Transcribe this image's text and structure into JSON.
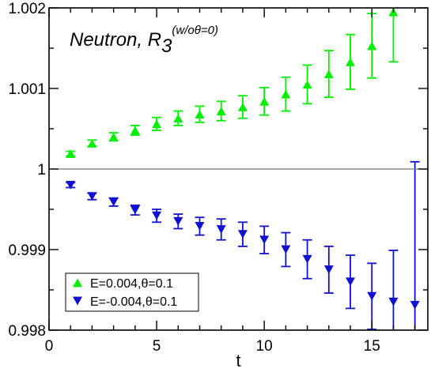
{
  "chart_data": {
    "type": "scatter",
    "title_main": "Neutron, R",
    "title_sub": "3",
    "title_sup": "(w/oθ=0)",
    "xlabel": "t",
    "ylabel": "",
    "xlim": [
      0,
      17.6
    ],
    "ylim": [
      0.998,
      1.002
    ],
    "xticks": [
      0,
      5,
      10,
      15
    ],
    "xtick_labels": [
      "0",
      "5",
      "10",
      "15"
    ],
    "yticks": [
      0.998,
      0.999,
      1.0,
      1.001,
      1.002
    ],
    "ytick_labels": [
      "0.998",
      "0.999",
      "1",
      "1.001",
      "1.002"
    ],
    "reference_line": 1.0,
    "grid": false,
    "legend_position": "bottom-left",
    "series": [
      {
        "name": "E=0.004,θ=0.1",
        "color": "#00ee00",
        "marker": "triangle-up",
        "points": [
          {
            "x": 1,
            "y": 1.00019,
            "err": 3e-05
          },
          {
            "x": 2,
            "y": 1.00032,
            "err": 4e-05
          },
          {
            "x": 3,
            "y": 1.0004,
            "err": 5e-05
          },
          {
            "x": 4,
            "y": 1.00048,
            "err": 6e-05
          },
          {
            "x": 5,
            "y": 1.00056,
            "err": 8e-05
          },
          {
            "x": 6,
            "y": 1.00063,
            "err": 9e-05
          },
          {
            "x": 7,
            "y": 1.00068,
            "err": 0.0001
          },
          {
            "x": 8,
            "y": 1.00072,
            "err": 0.00012
          },
          {
            "x": 9,
            "y": 1.00077,
            "err": 0.00014
          },
          {
            "x": 10,
            "y": 1.00084,
            "err": 0.00017
          },
          {
            "x": 11,
            "y": 1.00093,
            "err": 0.00021
          },
          {
            "x": 12,
            "y": 1.00105,
            "err": 0.00024
          },
          {
            "x": 13,
            "y": 1.00118,
            "err": 0.00029
          },
          {
            "x": 14,
            "y": 1.00133,
            "err": 0.00034
          },
          {
            "x": 15,
            "y": 1.00153,
            "err": 0.0004
          },
          {
            "x": 16,
            "y": 1.00195,
            "err": 0.00062
          }
        ]
      },
      {
        "name": "E=-0.004,θ=0.1",
        "color": "#1010d0",
        "marker": "triangle-down",
        "points": [
          {
            "x": 1,
            "y": 0.9998,
            "err": 3e-05
          },
          {
            "x": 2,
            "y": 0.99966,
            "err": 4e-05
          },
          {
            "x": 3,
            "y": 0.99959,
            "err": 5e-05
          },
          {
            "x": 4,
            "y": 0.99949,
            "err": 6e-05
          },
          {
            "x": 5,
            "y": 0.99942,
            "err": 8e-05
          },
          {
            "x": 6,
            "y": 0.99935,
            "err": 9e-05
          },
          {
            "x": 7,
            "y": 0.99929,
            "err": 0.00011
          },
          {
            "x": 8,
            "y": 0.99925,
            "err": 0.00013
          },
          {
            "x": 9,
            "y": 0.99919,
            "err": 0.00015
          },
          {
            "x": 10,
            "y": 0.99912,
            "err": 0.00017
          },
          {
            "x": 11,
            "y": 0.999,
            "err": 0.00021
          },
          {
            "x": 12,
            "y": 0.99888,
            "err": 0.00024
          },
          {
            "x": 13,
            "y": 0.99875,
            "err": 0.00029
          },
          {
            "x": 14,
            "y": 0.9986,
            "err": 0.00033
          },
          {
            "x": 15,
            "y": 0.99842,
            "err": 0.00041
          },
          {
            "x": 16,
            "y": 0.99835,
            "err": 0.00064
          },
          {
            "x": 17,
            "y": 0.99831,
            "err": 0.00178
          }
        ]
      }
    ]
  }
}
